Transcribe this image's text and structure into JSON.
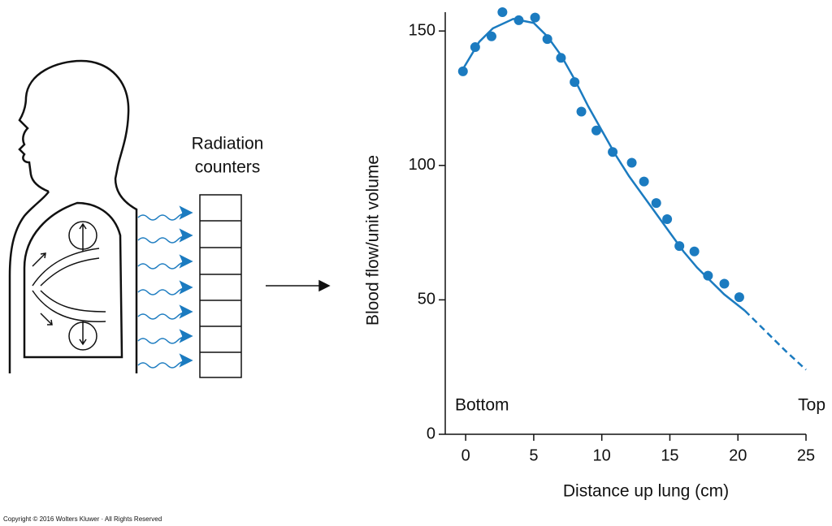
{
  "chart_data": {
    "type": "scatter",
    "xlabel": "Distance up lung (cm)",
    "ylabel": "Blood flow/unit volume",
    "left_annotation": "Bottom",
    "right_annotation": "Top",
    "xlim": [
      -1.5,
      25
    ],
    "ylim": [
      0,
      157
    ],
    "xticks": [
      0,
      5,
      10,
      15,
      20,
      25
    ],
    "yticks": [
      0,
      50,
      100,
      150
    ],
    "grid": false,
    "series": [
      {
        "style": "points",
        "color": "#1b7bc0",
        "x": [
          -0.2,
          0.7,
          1.9,
          2.7,
          3.9,
          5.1,
          6.0,
          7.0,
          8.0,
          8.5,
          9.6,
          10.8,
          12.2,
          13.1,
          14.0,
          14.8,
          15.7,
          16.8,
          17.8,
          19.0,
          20.1
        ],
        "values": [
          135,
          144,
          148,
          157,
          154,
          155,
          147,
          140,
          131,
          120,
          113,
          105,
          101,
          94,
          86,
          80,
          70,
          68,
          59,
          56,
          51
        ]
      },
      {
        "style": "solid",
        "color": "#1b7bc0",
        "x": [
          -0.3,
          1,
          2,
          3.5,
          5,
          6,
          7,
          8,
          9,
          10,
          11,
          12,
          13,
          14,
          15,
          16,
          17,
          18,
          19,
          20.5
        ],
        "values": [
          135,
          146,
          151,
          154.5,
          153,
          148,
          141,
          132,
          122,
          113,
          104,
          96,
          89,
          82,
          75,
          68,
          62,
          57,
          52,
          46
        ]
      },
      {
        "style": "dashed",
        "color": "#1b7bc0",
        "x": [
          20.5,
          21.5,
          22.5,
          23.5,
          25
        ],
        "values": [
          46,
          41,
          36,
          31,
          24
        ]
      }
    ]
  },
  "diagram": {
    "label_line1": "Radiation",
    "label_line2": "counters"
  },
  "copyright": "Copyright © 2016 Wolters Kluwer · All Rights Reserved"
}
